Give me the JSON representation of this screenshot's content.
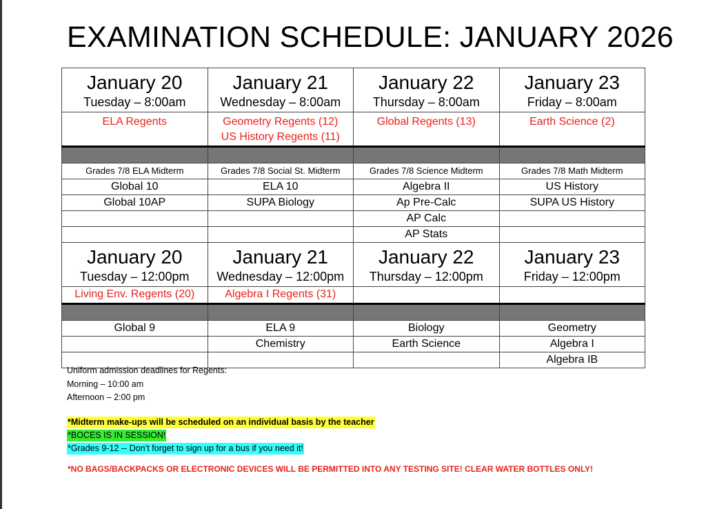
{
  "title": "EXAMINATION SCHEDULE: JANUARY 2026",
  "morning": {
    "headers": [
      {
        "date": "January 20",
        "day": "Tuesday – 8:00am"
      },
      {
        "date": "January 21",
        "day": "Wednesday – 8:00am"
      },
      {
        "date": "January 22",
        "day": "Thursday – 8:00am"
      },
      {
        "date": "January 23",
        "day": "Friday – 8:00am"
      }
    ],
    "regents": [
      [
        "ELA Regents",
        ""
      ],
      [
        "Geometry Regents (12)",
        "US History Regents (11)"
      ],
      [
        "Global Regents (13)",
        ""
      ],
      [
        "Earth Science (2)",
        ""
      ]
    ],
    "midterms": [
      "Grades 7/8 ELA Midterm",
      "Grades 7/8 Social St. Midterm",
      "Grades 7/8 Science Midterm",
      "Grades 7/8 Math Midterm"
    ],
    "rows": [
      [
        "Global 10",
        "ELA 10",
        "Algebra II",
        "US History"
      ],
      [
        "Global 10AP",
        "SUPA Biology",
        "Ap Pre-Calc",
        "SUPA US History"
      ],
      [
        "",
        "",
        "AP Calc",
        ""
      ],
      [
        "",
        "",
        "AP Stats",
        ""
      ]
    ]
  },
  "afternoon": {
    "headers": [
      {
        "date": "January 20",
        "day": "Tuesday – 12:00pm"
      },
      {
        "date": "January 21",
        "day": "Wednesday – 12:00pm"
      },
      {
        "date": "January 22",
        "day": "Thursday – 12:00pm"
      },
      {
        "date": "January 23",
        "day": "Friday – 12:00pm"
      }
    ],
    "regents": [
      "Living Env. Regents (20)",
      "Algebra I Regents (31)",
      "",
      ""
    ],
    "rows": [
      [
        "Global 9",
        "ELA 9",
        "Biology",
        "Geometry"
      ],
      [
        "",
        "Chemistry",
        "Earth Science",
        "Algebra I"
      ],
      [
        "",
        "",
        "",
        "Algebra IB"
      ]
    ]
  },
  "notes": {
    "deadlines_heading": "Uniform admission deadlines for Regents:",
    "morning": "Morning – 10:00 am",
    "afternoon": "Afternoon – 2:00 pm",
    "midterm_makeups": "*Midterm make-ups will be scheduled on an individual basis by the teacher",
    "boces": "*BOCES IS IN SESSION!",
    "bus": "*Grades 9-12 -- Don’t forget to sign up for a bus if you need it!",
    "warning": "*NO BAGS/BACKPACKS OR ELECTRONIC DEVICES WILL BE PERMITTED INTO ANY TESTING SITE!  CLEAR WATER BOTTLES ONLY!"
  },
  "colors": {
    "regents_red": "#e8211a",
    "highlight_yellow": "#ffff33",
    "highlight_green": "#33ee33",
    "highlight_cyan": "#33ffff",
    "separator_gray": "#767676"
  }
}
